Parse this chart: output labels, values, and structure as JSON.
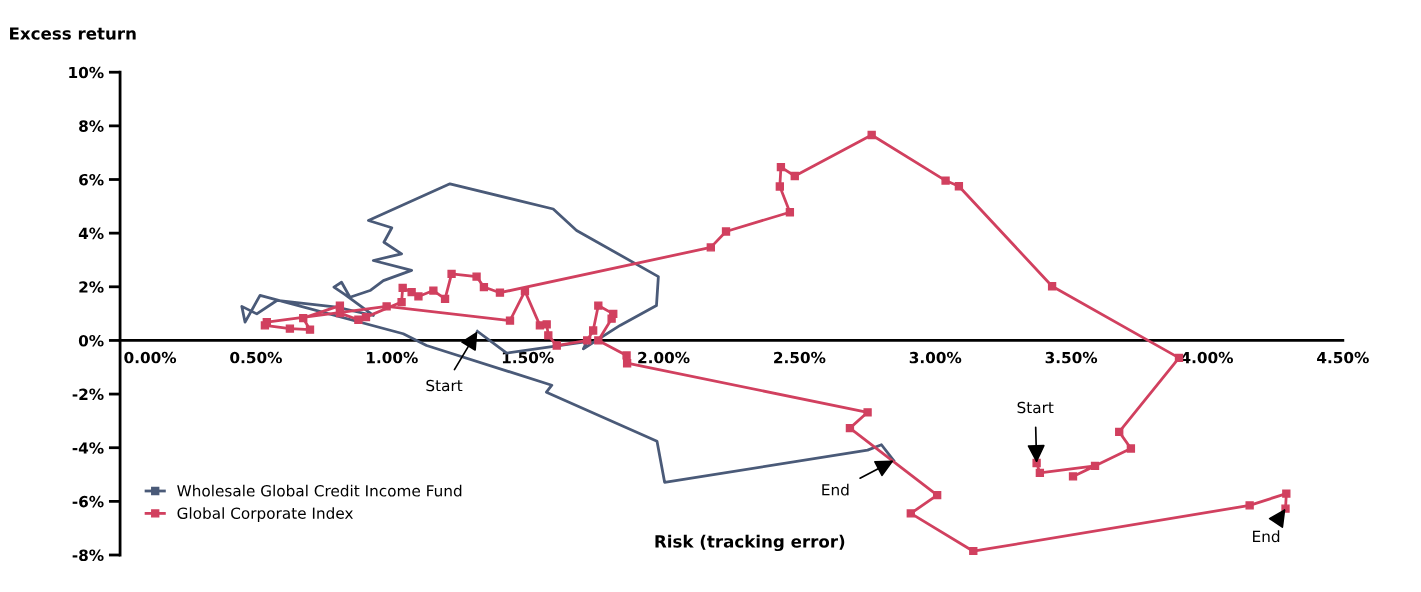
{
  "chart_data": {
    "type": "line",
    "xlabel": "Risk (tracking error)",
    "ylabel": "Excess return",
    "xlim": [
      0,
      4.5
    ],
    "ylim": [
      -8,
      10
    ],
    "xticks": [
      {
        "value": 0,
        "label": "0.00%"
      },
      {
        "value": 0.5,
        "label": "0.50%"
      },
      {
        "value": 1,
        "label": "1.00%"
      },
      {
        "value": 1.5,
        "label": "1.50%"
      },
      {
        "value": 2,
        "label": "2.00%"
      },
      {
        "value": 2.5,
        "label": "2.50%"
      },
      {
        "value": 3,
        "label": "3.00%"
      },
      {
        "value": 3.5,
        "label": "3.50%"
      },
      {
        "value": 4,
        "label": "4.00%"
      },
      {
        "value": 4.5,
        "label": "4.50%"
      }
    ],
    "yticks": [
      {
        "value": -8,
        "label": "-8%"
      },
      {
        "value": -6,
        "label": "-6%"
      },
      {
        "value": -4,
        "label": "-4%"
      },
      {
        "value": -2,
        "label": "-2%"
      },
      {
        "value": 0,
        "label": "0%"
      },
      {
        "value": 2,
        "label": "2%"
      },
      {
        "value": 4,
        "label": "4%"
      },
      {
        "value": 6,
        "label": "6%"
      },
      {
        "value": 8,
        "label": "8%"
      },
      {
        "value": 10,
        "label": "10%"
      }
    ],
    "grid": false,
    "legend": "bottom left",
    "series": [
      {
        "name": "Wholesale Global Credit Income Fund",
        "color": "#4a5a78",
        "marker": "none",
        "x": [
          1.315,
          1.423,
          1.718,
          1.705,
          1.84,
          1.974,
          1.981,
          1.68,
          1.594,
          1.214,
          0.914,
          1.0,
          0.971,
          1.036,
          0.932,
          1.073,
          0.969,
          0.92,
          0.846,
          0.815,
          0.787,
          0.828,
          0.932,
          0.797,
          0.577,
          0.503,
          0.448,
          0.46,
          0.515,
          1.042,
          1.128,
          1.589,
          1.569,
          1.976,
          2.004,
          2.751,
          2.802,
          2.847
        ],
        "values": [
          0.34,
          -0.47,
          -0.04,
          -0.31,
          0.56,
          1.3,
          2.38,
          4.1,
          4.9,
          5.84,
          4.47,
          4.2,
          3.66,
          3.23,
          2.98,
          2.61,
          2.23,
          1.86,
          1.61,
          2.17,
          1.99,
          1.71,
          0.93,
          1.24,
          1.49,
          0.99,
          1.27,
          0.68,
          1.68,
          0.25,
          -0.19,
          -1.67,
          -1.93,
          -3.76,
          -5.29,
          -4.09,
          -3.89,
          -4.48
        ]
      },
      {
        "name": "Global Corporate Index",
        "color": "#d1405f",
        "marker": "square",
        "x": [
          3.373,
          3.385,
          3.588,
          3.507,
          3.72,
          3.677,
          3.897,
          3.43,
          3.087,
          3.038,
          2.766,
          2.483,
          2.432,
          2.428,
          2.465,
          2.23,
          2.174,
          1.398,
          1.339,
          1.312,
          1.22,
          1.196,
          1.153,
          1.098,
          1.073,
          1.04,
          1.036,
          0.905,
          0.877,
          0.809,
          0.809,
          0.674,
          0.699,
          0.625,
          0.533,
          0.54,
          0.981,
          1.435,
          1.49,
          1.545,
          1.57,
          1.576,
          1.607,
          1.719,
          1.741,
          1.76,
          1.815,
          1.809,
          1.76,
          1.864,
          1.866,
          2.751,
          2.686,
          3.007,
          2.91,
          3.14,
          4.157,
          4.292,
          4.289
        ],
        "values": [
          -4.57,
          -4.94,
          -4.68,
          -5.07,
          -4.03,
          -3.41,
          -0.65,
          2.02,
          5.75,
          5.96,
          7.66,
          6.13,
          6.46,
          5.74,
          4.78,
          4.06,
          3.47,
          1.78,
          1.99,
          2.38,
          2.48,
          1.55,
          1.86,
          1.64,
          1.8,
          1.96,
          1.43,
          0.87,
          0.77,
          1.02,
          1.3,
          0.83,
          0.4,
          0.44,
          0.56,
          0.68,
          1.27,
          0.74,
          1.84,
          0.56,
          0.6,
          0.19,
          -0.19,
          0.0,
          0.37,
          1.3,
          0.99,
          0.81,
          0.0,
          -0.56,
          -0.85,
          -2.68,
          -3.27,
          -5.77,
          -6.45,
          -7.86,
          -6.15,
          -5.71,
          -6.27
        ]
      }
    ],
    "annotations": [
      {
        "text": "Start",
        "x": 1.315,
        "y": 0.34
      },
      {
        "text": "End",
        "x": 2.847,
        "y": -4.48
      },
      {
        "text": "Start",
        "x": 3.373,
        "y": -4.57
      },
      {
        "text": "End",
        "x": 4.289,
        "y": -6.27
      }
    ]
  }
}
